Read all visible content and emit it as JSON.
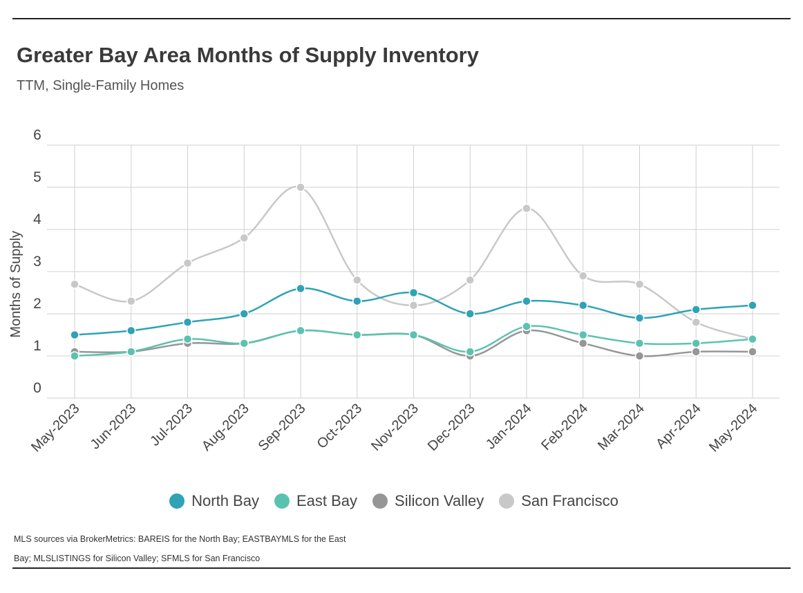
{
  "header": {
    "title": "Greater Bay Area Months of Supply Inventory",
    "subtitle": "TTM, Single-Family Homes"
  },
  "footnote": "MLS sources via BrokerMetrics: BAREIS for the North Bay; EASTBAYMLS for the East Bay; MLSLISTINGS for Silicon Valley; SFMLS for San Francisco",
  "chart_data": {
    "type": "line",
    "title": "Greater Bay Area Months of Supply Inventory",
    "subtitle": "TTM, Single-Family Homes",
    "ylabel": "Months of Supply",
    "xlabel": "",
    "ylim": [
      0,
      6
    ],
    "yticks": [
      0,
      1,
      2,
      3,
      4,
      5,
      6
    ],
    "grid": true,
    "legend_position": "bottom",
    "categories": [
      "May-2023",
      "Jun-2023",
      "Jul-2023",
      "Aug-2023",
      "Sep-2023",
      "Oct-2023",
      "Nov-2023",
      "Dec-2023",
      "Jan-2024",
      "Feb-2024",
      "Mar-2024",
      "Apr-2024",
      "May-2024"
    ],
    "series": [
      {
        "name": "San Francisco",
        "color": "#c8c8c8",
        "values": [
          2.7,
          2.3,
          3.2,
          3.8,
          5.0,
          2.8,
          2.2,
          2.8,
          4.5,
          2.9,
          2.7,
          1.8,
          1.4
        ]
      },
      {
        "name": "Silicon Valley",
        "color": "#969696",
        "values": [
          1.1,
          1.1,
          1.3,
          1.3,
          1.6,
          1.5,
          1.5,
          1.0,
          1.6,
          1.3,
          1.0,
          1.1,
          1.1
        ]
      },
      {
        "name": "East Bay",
        "color": "#5cc2b0",
        "values": [
          1.0,
          1.1,
          1.4,
          1.3,
          1.6,
          1.5,
          1.5,
          1.1,
          1.7,
          1.5,
          1.3,
          1.3,
          1.4
        ]
      },
      {
        "name": "North Bay",
        "color": "#2fa3b5",
        "values": [
          1.5,
          1.6,
          1.8,
          2.0,
          2.6,
          2.3,
          2.5,
          2.0,
          2.3,
          2.2,
          1.9,
          2.1,
          2.2
        ]
      }
    ],
    "legend_order": [
      "North Bay",
      "East Bay",
      "Silicon Valley",
      "San Francisco"
    ]
  }
}
